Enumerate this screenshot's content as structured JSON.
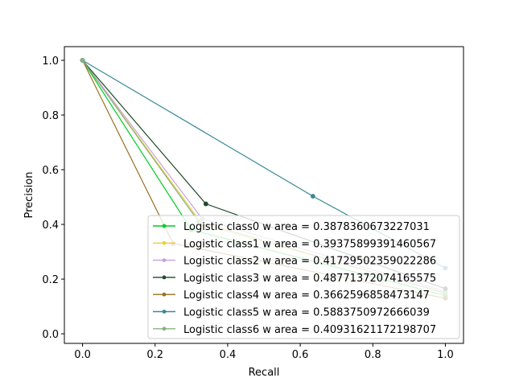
{
  "chart_data": {
    "type": "line",
    "title": "",
    "xlabel": "Recall",
    "ylabel": "Precision",
    "xlim": [
      -0.05,
      1.05
    ],
    "ylim": [
      -0.035,
      1.05
    ],
    "xticks": [
      0.0,
      0.2,
      0.4,
      0.6,
      0.8,
      1.0
    ],
    "yticks": [
      0.0,
      0.2,
      0.4,
      0.6,
      0.8,
      1.0
    ],
    "xtick_labels": [
      "0.0",
      "0.2",
      "0.4",
      "0.6",
      "0.8",
      "1.0"
    ],
    "ytick_labels": [
      "0.0",
      "0.2",
      "0.4",
      "0.6",
      "0.8",
      "1.0"
    ],
    "grid": false,
    "legend_position": "lower right",
    "series": [
      {
        "name": "Logistic class0 w area = 0.3878360673227031",
        "color": "#00cc22",
        "x": [
          0.0,
          0.3,
          1.0
        ],
        "y": [
          1.0,
          0.38,
          0.14
        ]
      },
      {
        "name": "Logistic class1 w area = 0.39375899391460567",
        "color": "#e6d23a",
        "x": [
          0.0,
          0.33,
          1.0
        ],
        "y": [
          1.0,
          0.4,
          0.15
        ]
      },
      {
        "name": "Logistic class2 w area = 0.41729502359022286",
        "color": "#c8a0d8",
        "x": [
          0.0,
          0.33,
          1.0
        ],
        "y": [
          1.0,
          0.42,
          0.155
        ]
      },
      {
        "name": "Logistic class3 w area = 0.48771372074165575",
        "color": "#1f4a28",
        "x": [
          0.0,
          0.34,
          1.0
        ],
        "y": [
          1.0,
          0.475,
          0.165
        ]
      },
      {
        "name": "Logistic class4 w area = 0.3662596858473147",
        "color": "#9a7020",
        "x": [
          0.0,
          0.25,
          1.0
        ],
        "y": [
          1.0,
          0.33,
          0.13
        ]
      },
      {
        "name": "Logistic class5 w area = 0.5883750972666039",
        "color": "#3a8898",
        "x": [
          0.0,
          0.635,
          1.0
        ],
        "y": [
          1.0,
          0.503,
          0.24
        ]
      },
      {
        "name": "Logistic class6 w area = 0.40931621172198707",
        "color": "#88b080",
        "x": [
          0.0,
          0.32,
          1.0
        ],
        "y": [
          1.0,
          0.41,
          0.148
        ]
      }
    ]
  }
}
